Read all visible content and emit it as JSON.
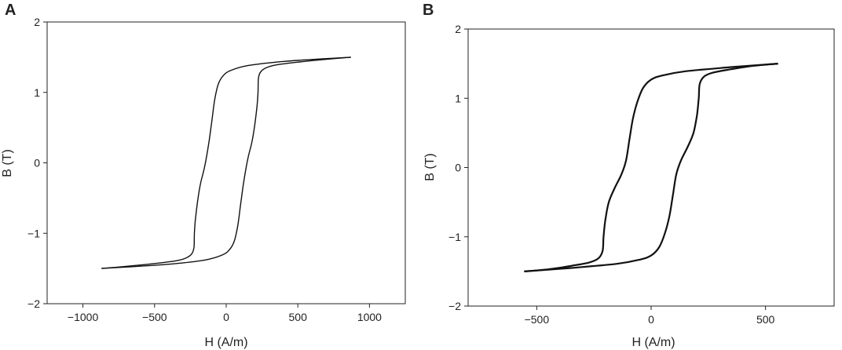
{
  "chart_data": [
    {
      "panel_label": "A",
      "type": "line",
      "xlabel": "H (A/m)",
      "ylabel": "B (T)",
      "xlim": [
        -1250,
        1250
      ],
      "ylim": [
        -2,
        2
      ],
      "xticks": [
        -1000,
        -500,
        0,
        500,
        1000
      ],
      "yticks": [
        -2,
        -1,
        0,
        1,
        2
      ],
      "xtick_labels": [
        "−1000",
        "−500",
        "0",
        "500",
        "1000"
      ],
      "ytick_labels": [
        "−2",
        "−1",
        "0",
        "1",
        "2"
      ],
      "grid": false,
      "series": [
        {
          "values": [
            [
              -870,
              -1.5
            ],
            [
              -700,
              -1.47
            ],
            [
              -500,
              -1.43
            ],
            [
              -350,
              -1.39
            ],
            [
              -280,
              -1.35
            ],
            [
              -240,
              -1.29
            ],
            [
              -225,
              -1.2
            ],
            [
              -222,
              -1.0
            ],
            [
              -215,
              -0.8
            ],
            [
              -200,
              -0.55
            ],
            [
              -180,
              -0.3
            ],
            [
              -150,
              -0.05
            ],
            [
              -120,
              0.3
            ],
            [
              -100,
              0.6
            ],
            [
              -80,
              0.9
            ],
            [
              -55,
              1.12
            ],
            [
              -20,
              1.24
            ],
            [
              30,
              1.31
            ],
            [
              150,
              1.38
            ],
            [
              400,
              1.44
            ],
            [
              700,
              1.48
            ],
            [
              870,
              1.5
            ]
          ]
        },
        {
          "values": [
            [
              870,
              1.5
            ],
            [
              700,
              1.47
            ],
            [
              500,
              1.43
            ],
            [
              350,
              1.39
            ],
            [
              280,
              1.35
            ],
            [
              240,
              1.29
            ],
            [
              225,
              1.2
            ],
            [
              222,
              1.0
            ],
            [
              215,
              0.8
            ],
            [
              200,
              0.55
            ],
            [
              180,
              0.3
            ],
            [
              150,
              0.05
            ],
            [
              120,
              -0.3
            ],
            [
              100,
              -0.6
            ],
            [
              80,
              -0.9
            ],
            [
              55,
              -1.12
            ],
            [
              20,
              -1.24
            ],
            [
              -30,
              -1.31
            ],
            [
              -150,
              -1.38
            ],
            [
              -400,
              -1.44
            ],
            [
              -700,
              -1.48
            ],
            [
              -870,
              -1.5
            ]
          ]
        }
      ]
    },
    {
      "panel_label": "B",
      "type": "line",
      "xlabel": "H (A/m)",
      "ylabel": "B (T)",
      "xlim": [
        -800,
        800
      ],
      "ylim": [
        -2,
        2
      ],
      "xticks": [
        -500,
        0,
        500
      ],
      "yticks": [
        -2,
        -1,
        0,
        1,
        2
      ],
      "xtick_labels": [
        "−500",
        "0",
        "500"
      ],
      "ytick_labels": [
        "−2",
        "−1",
        "0",
        "1",
        "2"
      ],
      "grid": false,
      "series": [
        {
          "values": [
            [
              -555,
              -1.5
            ],
            [
              -450,
              -1.47
            ],
            [
              -350,
              -1.42
            ],
            [
              -270,
              -1.37
            ],
            [
              -230,
              -1.31
            ],
            [
              -212,
              -1.2
            ],
            [
              -208,
              -1.0
            ],
            [
              -200,
              -0.75
            ],
            [
              -185,
              -0.5
            ],
            [
              -160,
              -0.3
            ],
            [
              -130,
              -0.1
            ],
            [
              -110,
              0.1
            ],
            [
              -95,
              0.4
            ],
            [
              -80,
              0.7
            ],
            [
              -60,
              0.95
            ],
            [
              -35,
              1.15
            ],
            [
              0,
              1.27
            ],
            [
              50,
              1.33
            ],
            [
              150,
              1.39
            ],
            [
              350,
              1.45
            ],
            [
              555,
              1.5
            ]
          ]
        },
        {
          "values": [
            [
              555,
              1.5
            ],
            [
              450,
              1.47
            ],
            [
              350,
              1.42
            ],
            [
              270,
              1.37
            ],
            [
              230,
              1.31
            ],
            [
              212,
              1.2
            ],
            [
              208,
              1.0
            ],
            [
              200,
              0.75
            ],
            [
              185,
              0.5
            ],
            [
              160,
              0.3
            ],
            [
              130,
              0.1
            ],
            [
              110,
              -0.1
            ],
            [
              95,
              -0.4
            ],
            [
              80,
              -0.7
            ],
            [
              60,
              -0.95
            ],
            [
              35,
              -1.15
            ],
            [
              0,
              -1.27
            ],
            [
              -50,
              -1.33
            ],
            [
              -150,
              -1.39
            ],
            [
              -350,
              -1.45
            ],
            [
              -555,
              -1.5
            ]
          ]
        }
      ]
    }
  ]
}
